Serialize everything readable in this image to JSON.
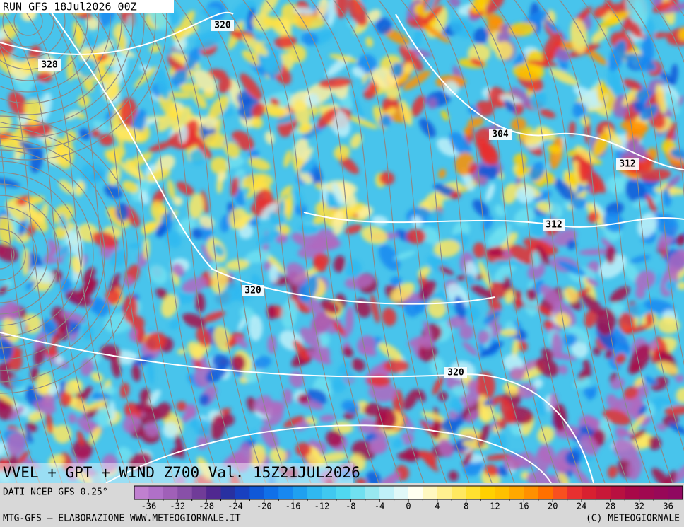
{
  "header": {
    "run": "RUN GFS 18Jul2026 00Z"
  },
  "map": {
    "title": "VVEL + GPT + WIND Z700 Val. 15Z21JUL2026",
    "contour_labels": [
      320,
      328,
      304,
      312,
      312,
      320,
      320
    ]
  },
  "colorbar": {
    "source": "DATI NCEP GFS 0.25°",
    "bounds": [
      -38,
      38
    ],
    "ticks": [
      -36,
      -32,
      -28,
      -24,
      -20,
      -16,
      -12,
      -8,
      -4,
      0,
      4,
      8,
      12,
      16,
      20,
      24,
      28,
      32,
      36
    ],
    "minor_ticks": [
      -34,
      -30,
      -26,
      -22,
      -18,
      -14,
      -10,
      -6,
      -2,
      2,
      6,
      10,
      14,
      18,
      22,
      26,
      30,
      34
    ],
    "colors": [
      "#c080d0",
      "#b070c8",
      "#a060b8",
      "#8850a8",
      "#703c98",
      "#502890",
      "#2830a0",
      "#1840c0",
      "#1058d8",
      "#1070e8",
      "#1888f0",
      "#20a0f0",
      "#30b8f0",
      "#40c8f0",
      "#50d8f0",
      "#70e0f0",
      "#98e8f0",
      "#c0f0f8",
      "#e0f8f8",
      "#fffff0",
      "#fff8c0",
      "#fff090",
      "#ffe860",
      "#ffe030",
      "#ffd000",
      "#ffc000",
      "#ffa800",
      "#ff9000",
      "#ff7000",
      "#f85020",
      "#e83030",
      "#d82030",
      "#c81838",
      "#b81040",
      "#a80848",
      "#a00850",
      "#980858",
      "#900860"
    ]
  },
  "footer": {
    "credit": "MTG-GFS — ELABORAZIONE WWW.METEOGIORNALE.IT",
    "copyright": "(C) METEOGIORNALE"
  }
}
